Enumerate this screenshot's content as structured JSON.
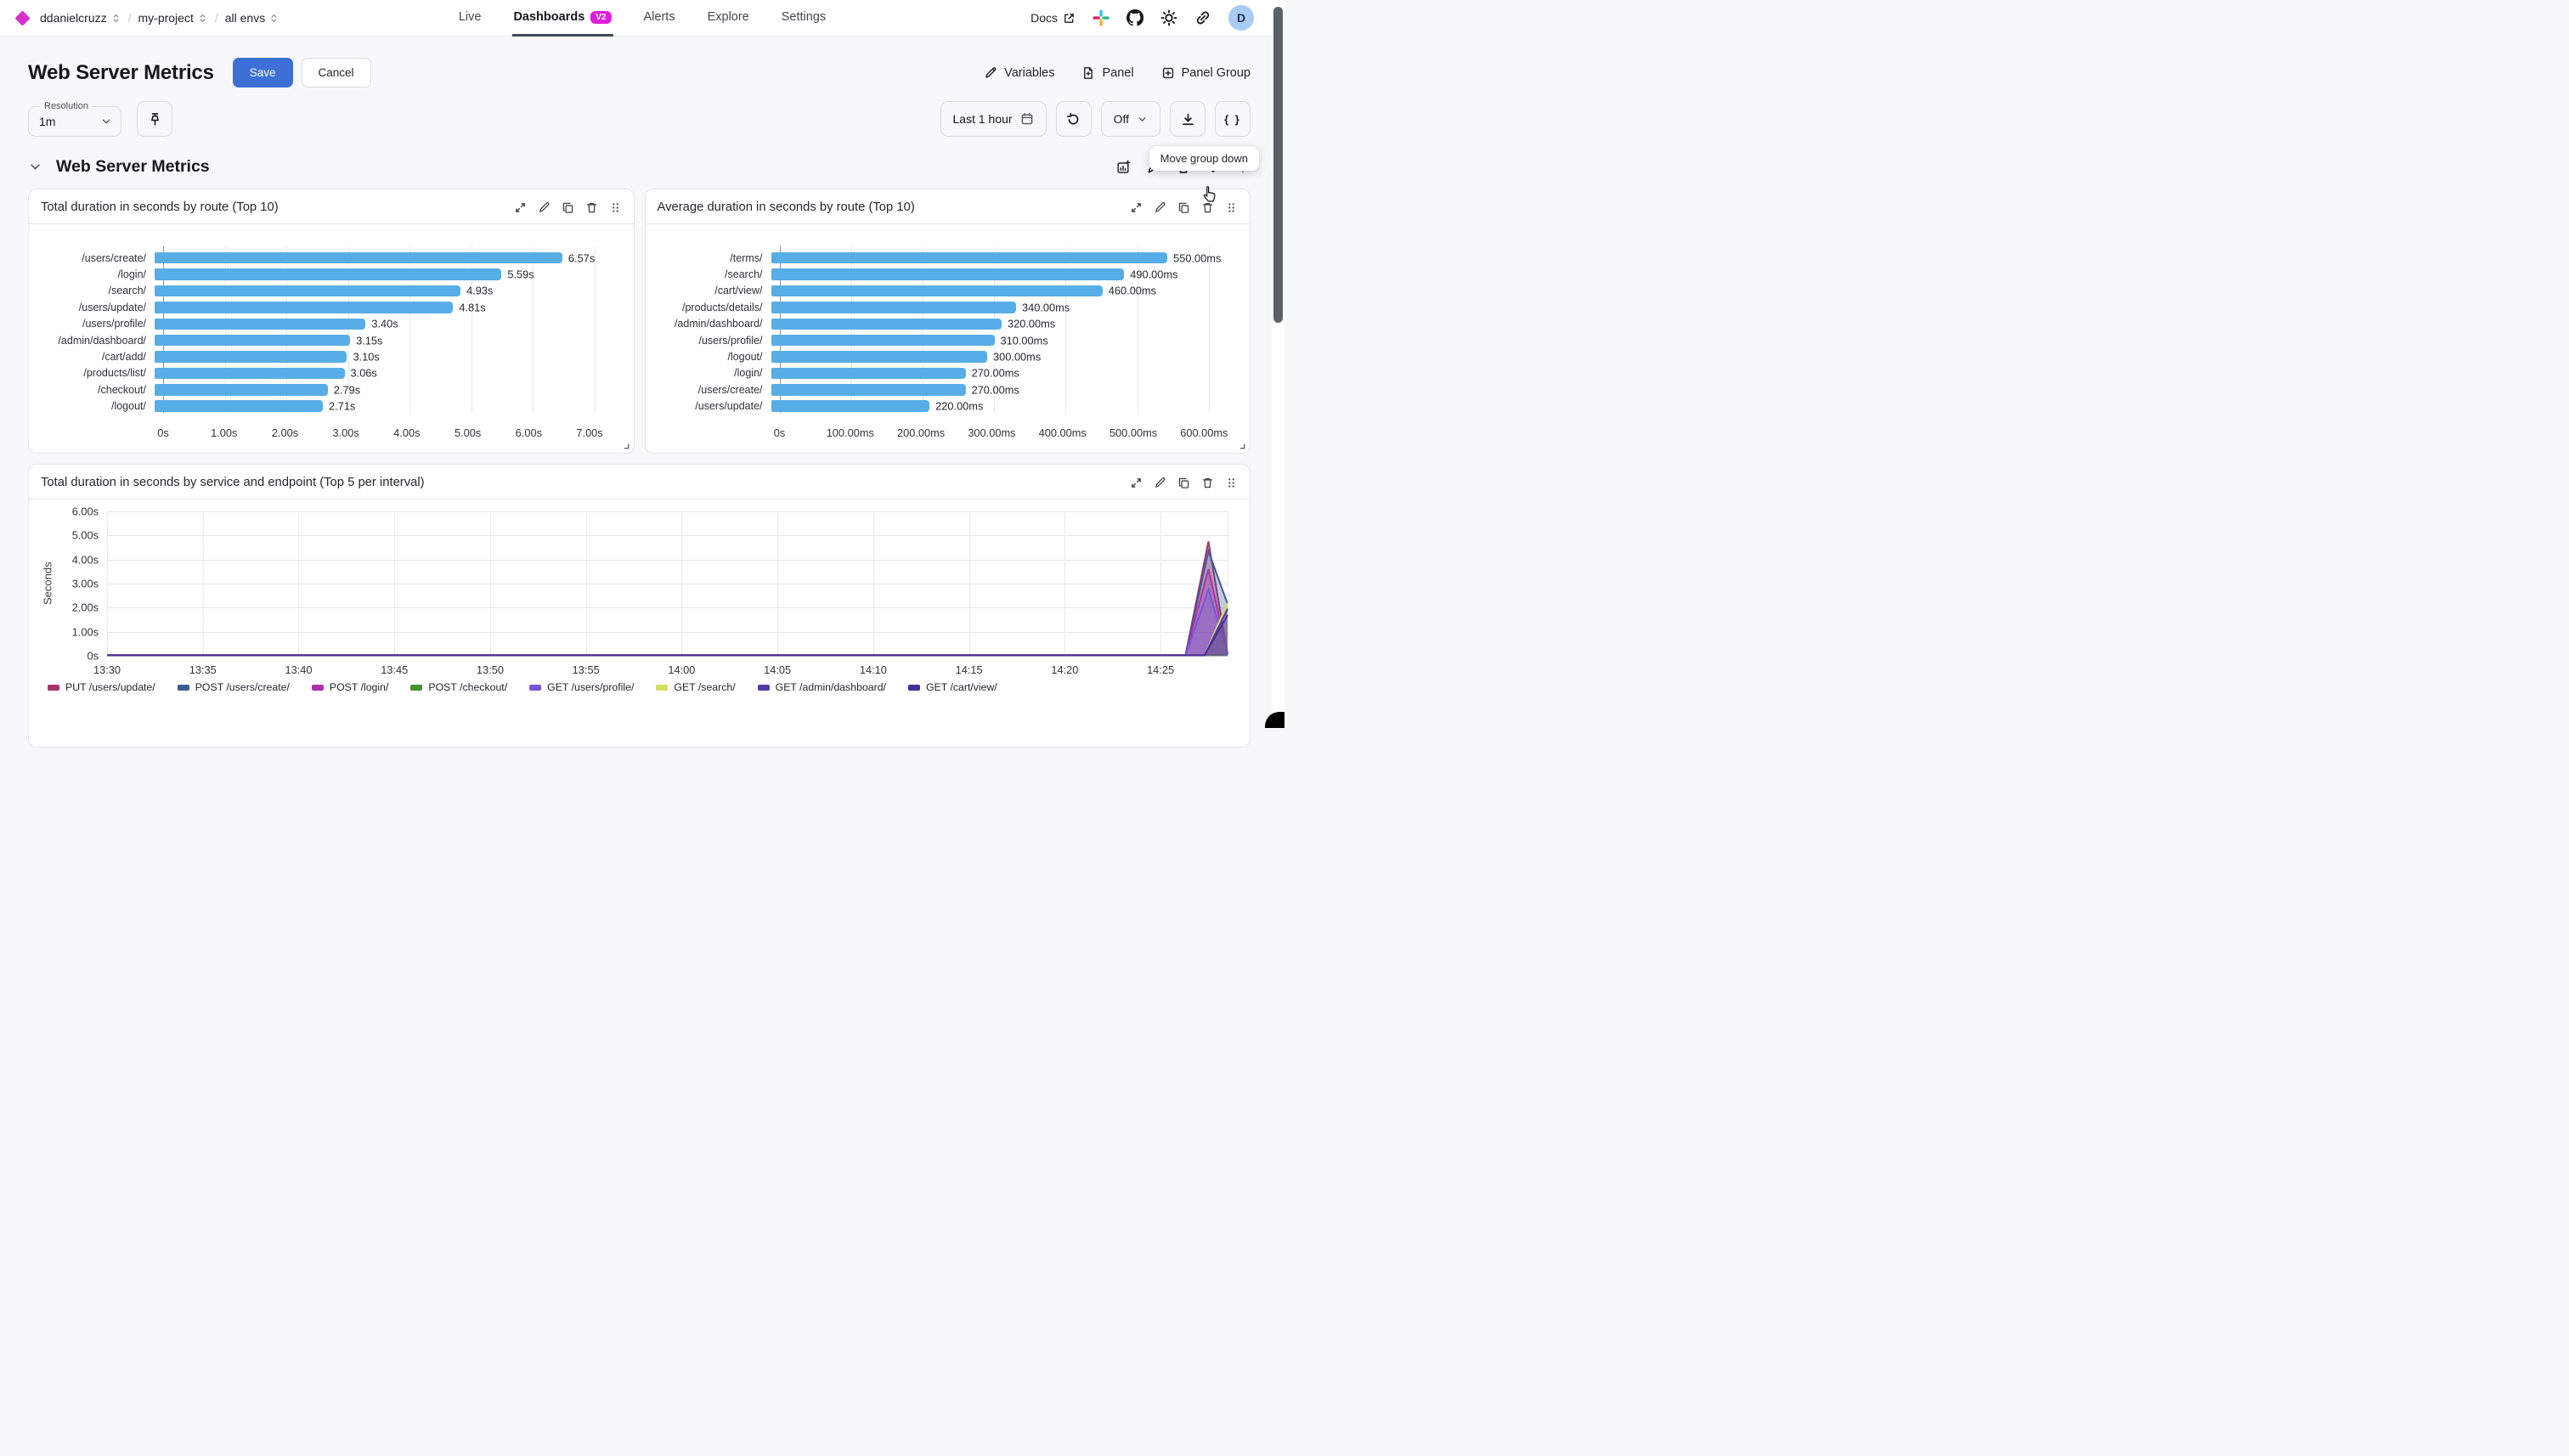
{
  "nav": {
    "breadcrumb": {
      "org": "ddanielcruzz",
      "project": "my-project",
      "env": "all envs",
      "separator": "/"
    },
    "tabs": [
      {
        "label": "Live",
        "active": false
      },
      {
        "label": "Dashboards",
        "badge": "V2",
        "active": true
      },
      {
        "label": "Alerts",
        "active": false
      },
      {
        "label": "Explore",
        "active": false
      },
      {
        "label": "Settings",
        "active": false
      }
    ],
    "docs_label": "Docs",
    "avatar_letter": "D"
  },
  "header": {
    "title": "Web Server Metrics",
    "save_label": "Save",
    "cancel_label": "Cancel",
    "variables_label": "Variables",
    "panel_label": "Panel",
    "panel_group_label": "Panel Group"
  },
  "controls": {
    "resolution_label": "Resolution",
    "resolution_value": "1m",
    "time_range": "Last 1 hour",
    "auto_refresh": "Off",
    "braces_label": "{ }"
  },
  "tooltip": "Move group down",
  "group_title": "Web Server Metrics",
  "colors": {
    "bar": "#57aee6",
    "accent": "#3c70d6",
    "badge": "#e01ed8",
    "logo": "#d632cb"
  },
  "chart_data": [
    {
      "type": "bar",
      "title": "Total duration in seconds by route (Top 10)",
      "orientation": "horizontal",
      "categories": [
        "/users/create/",
        "/login/",
        "/search/",
        "/users/update/",
        "/users/profile/",
        "/admin/dashboard/",
        "/cart/add/",
        "/products/list/",
        "/checkout/",
        "/logout/"
      ],
      "values": [
        6.57,
        5.59,
        4.93,
        4.81,
        3.4,
        3.15,
        3.1,
        3.06,
        2.79,
        2.71
      ],
      "value_labels": [
        "6.57s",
        "5.59s",
        "4.93s",
        "4.81s",
        "3.40s",
        "3.15s",
        "3.10s",
        "3.06s",
        "2.79s",
        "2.71s"
      ],
      "max": 7.55,
      "ticks": [
        {
          "v": 0,
          "label": "0s"
        },
        {
          "v": 1,
          "label": "1.00s"
        },
        {
          "v": 2,
          "label": "2.00s"
        },
        {
          "v": 3,
          "label": "3.00s"
        },
        {
          "v": 4,
          "label": "4.00s"
        },
        {
          "v": 5,
          "label": "5.00s"
        },
        {
          "v": 6,
          "label": "6.00s"
        },
        {
          "v": 7,
          "label": "7.00s"
        }
      ]
    },
    {
      "type": "bar",
      "title": "Average duration in seconds by route (Top 10)",
      "orientation": "horizontal",
      "categories": [
        "/terms/",
        "/search/",
        "/cart/view/",
        "/products/details/",
        "/admin/dashboard/",
        "/users/profile/",
        "/logout/",
        "/login/",
        "/users/create/",
        "/users/update/"
      ],
      "values": [
        550,
        490,
        460,
        340,
        320,
        310,
        300,
        270,
        270,
        220
      ],
      "value_labels": [
        "550.00ms",
        "490.00ms",
        "460.00ms",
        "340.00ms",
        "320.00ms",
        "310.00ms",
        "300.00ms",
        "270.00ms",
        "270.00ms",
        "220.00ms"
      ],
      "max": 650,
      "ticks": [
        {
          "v": 0,
          "label": "0s"
        },
        {
          "v": 100,
          "label": "100.00ms"
        },
        {
          "v": 200,
          "label": "200.00ms"
        },
        {
          "v": 300,
          "label": "300.00ms"
        },
        {
          "v": 400,
          "label": "400.00ms"
        },
        {
          "v": 500,
          "label": "500.00ms"
        },
        {
          "v": 600,
          "label": "600.00ms"
        }
      ]
    },
    {
      "type": "line",
      "title": "Total duration in seconds by service and endpoint (Top 5 per interval)",
      "ylabel": "Seconds",
      "y_max": 6,
      "x_max": 58.5,
      "y_ticks": [
        {
          "v": 0,
          "label": "0s"
        },
        {
          "v": 1,
          "label": "1.00s"
        },
        {
          "v": 2,
          "label": "2.00s"
        },
        {
          "v": 3,
          "label": "3.00s"
        },
        {
          "v": 4,
          "label": "4.00s"
        },
        {
          "v": 5,
          "label": "5.00s"
        },
        {
          "v": 6,
          "label": "6.00s"
        }
      ],
      "x_ticks": [
        {
          "m": 0,
          "label": "13:30"
        },
        {
          "m": 5,
          "label": "13:35"
        },
        {
          "m": 10,
          "label": "13:40"
        },
        {
          "m": 15,
          "label": "13:45"
        },
        {
          "m": 20,
          "label": "13:50"
        },
        {
          "m": 25,
          "label": "13:55"
        },
        {
          "m": 30,
          "label": "14:00"
        },
        {
          "m": 35,
          "label": "14:05"
        },
        {
          "m": 40,
          "label": "14:10"
        },
        {
          "m": 45,
          "label": "14:15"
        },
        {
          "m": 50,
          "label": "14:20"
        },
        {
          "m": 55,
          "label": "14:25"
        }
      ],
      "series": [
        {
          "name": "PUT /users/update/",
          "color": "#a4336b",
          "points": [
            [
              0,
              0.02
            ],
            [
              56.3,
              0.02
            ],
            [
              57.5,
              4.75
            ],
            [
              58.5,
              0.05
            ]
          ]
        },
        {
          "name": "POST /users/create/",
          "color": "#3f5a96",
          "points": [
            [
              0,
              0.02
            ],
            [
              56.3,
              0.02
            ],
            [
              57.5,
              4.35
            ],
            [
              58.5,
              2.15
            ]
          ]
        },
        {
          "name": "POST /login/",
          "color": "#ae30a8",
          "points": [
            [
              0,
              0.02
            ],
            [
              56.3,
              0.02
            ],
            [
              57.5,
              3.6
            ],
            [
              58.5,
              0.1
            ]
          ]
        },
        {
          "name": "POST /checkout/",
          "color": "#48912f",
          "points": [
            [
              0,
              0.02
            ],
            [
              58.5,
              0.02
            ]
          ]
        },
        {
          "name": "GET /users/profile/",
          "color": "#7456dd",
          "points": [
            [
              0,
              0.02
            ],
            [
              56.3,
              0.02
            ],
            [
              57.5,
              2.75
            ],
            [
              58.5,
              0.1
            ]
          ]
        },
        {
          "name": "GET /search/",
          "color": "#d5e061",
          "points": [
            [
              0,
              0.02
            ],
            [
              57.3,
              0.02
            ],
            [
              58.5,
              2.2
            ]
          ]
        },
        {
          "name": "GET /admin/dashboard/",
          "color": "#5838a8",
          "points": [
            [
              0,
              0.02
            ],
            [
              57.3,
              0.02
            ],
            [
              58.5,
              1.95
            ]
          ]
        },
        {
          "name": "GET /cart/view/",
          "color": "#4a2b9b",
          "points": [
            [
              0,
              0.02
            ],
            [
              57.3,
              0.02
            ],
            [
              58.5,
              1.7
            ]
          ]
        }
      ]
    }
  ]
}
